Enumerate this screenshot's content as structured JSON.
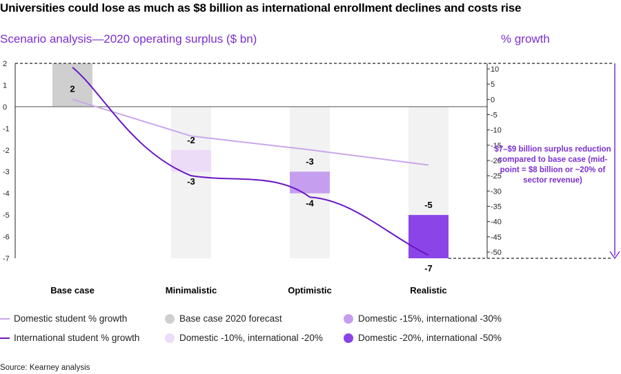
{
  "title": "Universities could lose as much as $8 billion as international enrollment declines and costs rise",
  "subtitle": "Scenario analysis—2020 operating surplus ($ bn)",
  "right_axis_title": "% growth",
  "annotation": "$7–$9 billion surplus reduction compared to base case (mid-point = $8 billion or ~20% of sector revenue)",
  "source": "Source: Kearney analysis",
  "legend": [
    {
      "label": "Domestic student % growth",
      "type": "line",
      "color": "#c9a6ec"
    },
    {
      "label": "International student % growth",
      "type": "line",
      "color": "#6a16c4"
    },
    {
      "label": "Base case 2020 forecast",
      "type": "dot",
      "color": "#cfcfcf"
    },
    {
      "label": "Domestic -10%, international -20%",
      "type": "dot",
      "color": "#ecdcf8"
    },
    {
      "label": "Domestic -15%, international -30%",
      "type": "dot",
      "color": "#c69ef0"
    },
    {
      "label": "Domestic -20%, international -50%",
      "type": "dot",
      "color": "#8b44e8"
    }
  ],
  "colors": {
    "accent": "#7a2fd0",
    "base": "#cfcfcf",
    "background_bar": "#f2f2f2",
    "zero_line": "#888888"
  },
  "chart_data": {
    "type": "bar",
    "categories": [
      "Base case",
      "Minimalistic",
      "Optimistic",
      "Realistic"
    ],
    "left_axis": {
      "ylim": [
        -7,
        2
      ],
      "ticks": [
        "2",
        "1",
        "0",
        "-1",
        "-2",
        "-3",
        "-4",
        "-5",
        "-6",
        "-7"
      ],
      "tick_values": [
        2,
        1,
        0,
        -1,
        -2,
        -3,
        -4,
        -5,
        -6,
        -7
      ]
    },
    "right_axis": {
      "ylim": [
        -52,
        12
      ],
      "ticks": [
        "10",
        "5",
        "0",
        "-5",
        "-10",
        "-15",
        "-20",
        "-25",
        "-30",
        "-35",
        "-40",
        "-45",
        "-50"
      ],
      "tick_values": [
        10,
        5,
        0,
        -5,
        -10,
        -15,
        -20,
        -25,
        -30,
        -35,
        -40,
        -45,
        -50
      ]
    },
    "bars": [
      {
        "category": "Base case",
        "low": 0,
        "high": 2,
        "label_value": "2",
        "color": "#cfcfcf",
        "label_pos": "inside"
      },
      {
        "category": "Minimalistic",
        "low": -3,
        "high": -2,
        "label_top": "-2",
        "label_bottom": "-3",
        "color": "#ecdcf8"
      },
      {
        "category": "Optimistic",
        "low": -4,
        "high": -3,
        "label_top": "-3",
        "label_bottom": "-4",
        "color": "#c69ef0"
      },
      {
        "category": "Realistic",
        "low": -7,
        "high": -5,
        "label_top": "-5",
        "label_bottom": "-7",
        "color": "#8b44e8"
      }
    ],
    "background_range": {
      "low": -7,
      "high": 0
    },
    "series": [
      {
        "name": "Domestic student % growth",
        "axis": "right",
        "values": [
          0,
          -12,
          -16.5,
          -21.5
        ],
        "color": "#c9a6ec"
      },
      {
        "name": "International student % growth",
        "axis": "right",
        "values": [
          10.5,
          -25,
          -32,
          -51
        ],
        "color": "#6a16c4"
      }
    ],
    "reference_range": {
      "from": 2,
      "to": -7
    }
  }
}
